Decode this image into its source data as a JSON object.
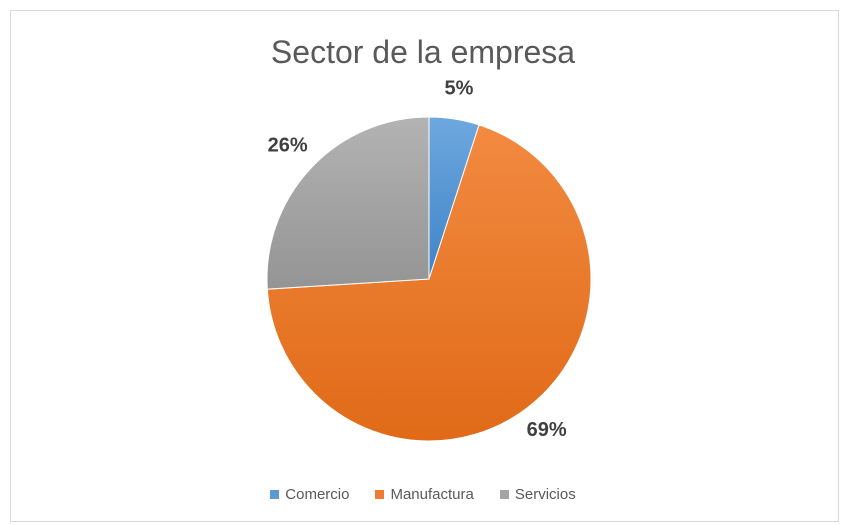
{
  "chart_data": {
    "type": "pie",
    "title": "Sector de la empresa",
    "categories": [
      "Comercio",
      "Manufactura",
      "Servicios"
    ],
    "values": [
      5,
      69,
      26
    ],
    "labels": [
      "5%",
      "69%",
      "26%"
    ],
    "colors": [
      "#5b9bd5",
      "#ed7d31",
      "#a5a5a5"
    ],
    "legend_position": "bottom"
  }
}
